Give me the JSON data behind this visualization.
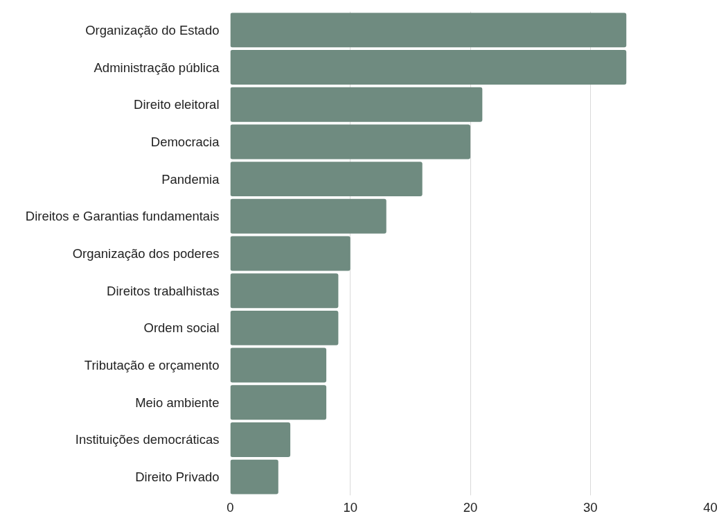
{
  "chart_data": {
    "type": "bar",
    "orientation": "horizontal",
    "categories": [
      "Organização do Estado",
      "Administração pública",
      "Direito eleitoral",
      "Democracia",
      "Pandemia",
      "Direitos e Garantias fundamentais",
      "Organização dos poderes",
      "Direitos trabalhistas",
      "Ordem social",
      "Tributação e orçamento",
      "Meio ambiente",
      "Instituições democráticas",
      "Direito Privado"
    ],
    "values": [
      33,
      33,
      21,
      20,
      16,
      13,
      10,
      9,
      9,
      8,
      8,
      5,
      4
    ],
    "color": "#6f8b80",
    "xlim": [
      0,
      40
    ],
    "xticks": [
      0,
      10,
      20,
      30,
      40
    ],
    "grid": "x"
  }
}
